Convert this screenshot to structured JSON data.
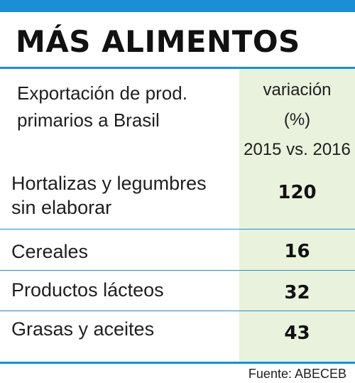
{
  "colors": {
    "accent": "#1a8fd6",
    "value_column_bg": "#e8f2dd",
    "text": "#1f1f1f"
  },
  "chart_data": {
    "type": "table",
    "title": "MÁS ALIMENTOS",
    "columns": [
      "Exportación de prod. primarios a Brasil",
      "variación (%) 2015 vs. 2016"
    ],
    "header": {
      "label_lines": [
        "Exportación de prod.",
        "primarios a Brasil"
      ],
      "value_lines": [
        "variación",
        "(%)",
        "2015 vs. 2016"
      ]
    },
    "rows": [
      {
        "label_lines": [
          "Hortalizas y legumbres",
          "sin elaborar"
        ],
        "value": 120
      },
      {
        "label_lines": [
          "Cereales"
        ],
        "value": 16
      },
      {
        "label_lines": [
          "Productos lácteos"
        ],
        "value": 32
      },
      {
        "label_lines": [
          "Grasas y aceites"
        ],
        "value": 43
      }
    ],
    "source": "Fuente: ABECEB"
  }
}
